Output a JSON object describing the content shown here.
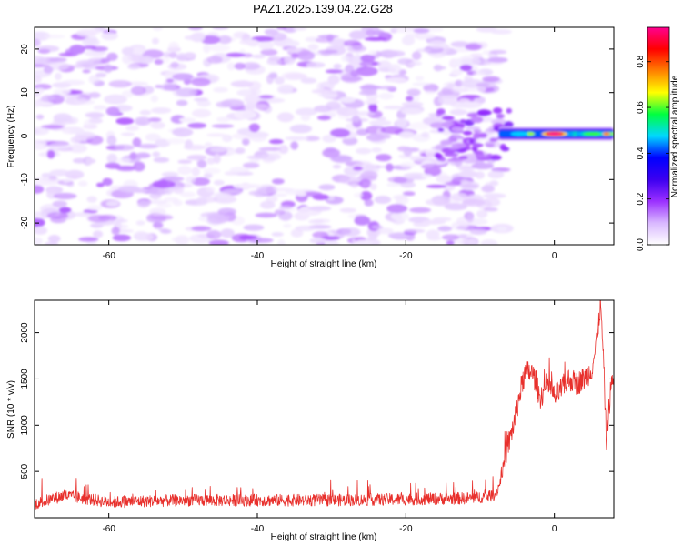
{
  "title": "PAZ1.2025.139.04.22.G28",
  "colors": {
    "snr_line": "#e8302c",
    "colorbar_stops": [
      "#ffffff",
      "#d9b8ff",
      "#9b30ff",
      "#3c00f0",
      "#0000ff",
      "#00d8ff",
      "#00ff40",
      "#ffff00",
      "#ff8000",
      "#ff0000",
      "#ff0090"
    ]
  },
  "chart_data": [
    {
      "type": "heatmap",
      "xlabel": "Height of straight line (km)",
      "ylabel": "Frequency (Hz)",
      "xlim": [
        -70,
        8
      ],
      "ylim": [
        -25,
        25
      ],
      "xticks": [
        -60,
        -40,
        -20,
        0
      ],
      "yticks": [
        -20,
        -10,
        0,
        10,
        20
      ],
      "colorbar": {
        "label": "Normalized spectral amplitude",
        "range": [
          0,
          0.95
        ],
        "ticks": [
          0.0,
          0.2,
          0.4,
          0.6,
          0.8
        ]
      },
      "features": {
        "noise_x_range": [
          -70,
          -7
        ],
        "signal_band_x_range": [
          -7,
          8
        ],
        "signal_frequency": 0.5,
        "signal_peak_x": 0,
        "signal_peak_amplitude": 0.95
      }
    },
    {
      "type": "line",
      "xlabel": "Height of straight line (km)",
      "ylabel": "SNR (10 * v/v)",
      "xlim": [
        -70,
        8
      ],
      "ylim": [
        0,
        2350
      ],
      "xticks": [
        -60,
        -40,
        -20,
        0
      ],
      "yticks": [
        500,
        1000,
        1500,
        2000
      ],
      "grid": false,
      "series": [
        {
          "x": [
            -70,
            -66,
            -60,
            -50,
            -40,
            -30,
            -20,
            -12,
            -9,
            -8,
            -7.5,
            -7,
            -6.5,
            -6,
            -5.5,
            -5,
            -4.5,
            -4,
            -3.5,
            -3,
            -2.5,
            -2,
            -1.5,
            -1,
            -0.5,
            0,
            1,
            2,
            3,
            4,
            5,
            5.5,
            6,
            6.2,
            6.5,
            6.8,
            7,
            7.3,
            7.6,
            8
          ],
          "y": [
            150,
            240,
            170,
            190,
            190,
            190,
            200,
            210,
            230,
            250,
            330,
            500,
            700,
            850,
            1000,
            1200,
            1400,
            1550,
            1580,
            1560,
            1480,
            1300,
            1350,
            1450,
            1400,
            1300,
            1400,
            1500,
            1450,
            1500,
            1600,
            1800,
            2150,
            2300,
            1900,
            1300,
            800,
            1150,
            1400,
            1550
          ]
        }
      ]
    }
  ]
}
